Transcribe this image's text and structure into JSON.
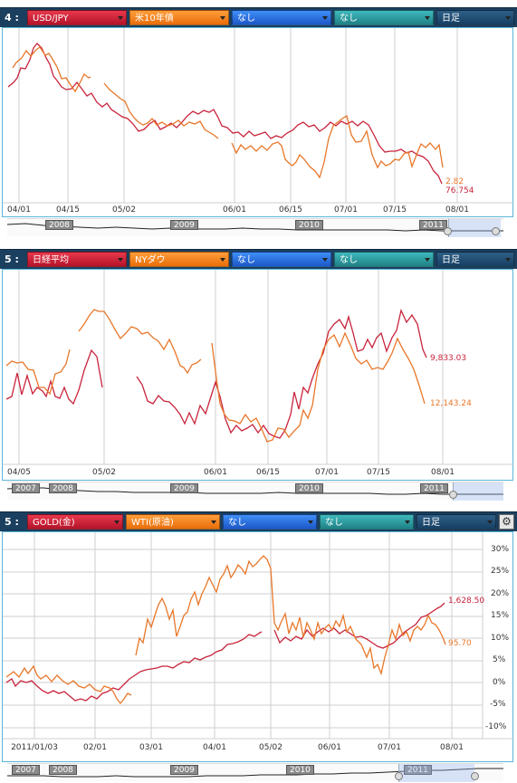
{
  "panels": [
    {
      "index": "4 :",
      "selectors": [
        {
          "label": "USD/JPY",
          "style": "sel-red"
        },
        {
          "label": "米10年債",
          "style": "sel-orange"
        },
        {
          "label": "なし",
          "style": "sel-blue"
        },
        {
          "label": "なし",
          "style": "sel-teal"
        }
      ],
      "period": "日足",
      "has_gear": false,
      "x_ticks": [
        "04/01",
        "04/15",
        "05/02",
        "06/01",
        "06/15",
        "07/01",
        "07/15",
        "08/01"
      ],
      "y_ticks": [],
      "last_values": [
        {
          "label": "2.82",
          "color": "#e8772a"
        },
        {
          "label": "76.754",
          "color": "#c8243c"
        }
      ],
      "nav_years": [
        "2008",
        "2009",
        "2010",
        "2011"
      ]
    },
    {
      "index": "5 :",
      "selectors": [
        {
          "label": "日経平均",
          "style": "sel-red"
        },
        {
          "label": "NYダウ",
          "style": "sel-orange"
        },
        {
          "label": "なし",
          "style": "sel-blue"
        },
        {
          "label": "なし",
          "style": "sel-teal"
        }
      ],
      "period": "日足",
      "has_gear": false,
      "x_ticks": [
        "04/05",
        "05/02",
        "06/01",
        "06/15",
        "07/01",
        "07/15",
        "08/01"
      ],
      "y_ticks": [],
      "last_values": [
        {
          "label": "9,833.03",
          "color": "#c8243c"
        },
        {
          "label": "12,143.24",
          "color": "#e8772a"
        }
      ],
      "nav_years": [
        "2007",
        "2008",
        "2009",
        "2010",
        "2011"
      ]
    },
    {
      "index": "5 :",
      "selectors": [
        {
          "label": "GOLD(金)",
          "style": "sel-red"
        },
        {
          "label": "WTI(原油)",
          "style": "sel-orange"
        },
        {
          "label": "なし",
          "style": "sel-blue"
        },
        {
          "label": "なし",
          "style": "sel-teal"
        }
      ],
      "period": "日足",
      "has_gear": true,
      "x_ticks": [
        "2011/01/03",
        "02/01",
        "03/01",
        "04/01",
        "05/02",
        "06/01",
        "07/01",
        "08/01"
      ],
      "y_ticks": [
        "30%",
        "25%",
        "20%",
        "15%",
        "10%",
        "5%",
        "0%",
        "-5%",
        "-10%"
      ],
      "last_values": [
        {
          "label": "1,628.50",
          "color": "#c8243c"
        },
        {
          "label": "95.70",
          "color": "#e8772a"
        }
      ],
      "nav_years": [
        "2007",
        "2008",
        "2009",
        "2010",
        "2011"
      ]
    }
  ],
  "chart_data": [
    {
      "type": "line",
      "x": [
        "04/01",
        "04/15",
        "05/02",
        "06/01",
        "06/15",
        "07/01",
        "07/15",
        "08/01"
      ],
      "series": [
        {
          "name": "USD/JPY",
          "color": "#c8243c",
          "values": [
            83.5,
            81.8,
            80.7,
            80.9,
            80.3,
            80.4,
            78.8,
            76.754
          ]
        },
        {
          "name": "米10年債",
          "color": "#e8772a",
          "values": [
            3.45,
            3.52,
            3.3,
            3.05,
            2.95,
            3.3,
            3.0,
            2.82
          ]
        }
      ]
    },
    {
      "type": "line",
      "x": [
        "04/05",
        "05/02",
        "06/01",
        "06/15",
        "07/01",
        "07/15",
        "08/01"
      ],
      "series": [
        {
          "name": "日経平均",
          "color": "#c8243c",
          "values": [
            9700,
            9650,
            9690,
            9400,
            9840,
            10050,
            9833.03
          ]
        },
        {
          "name": "NYダウ",
          "color": "#e8772a",
          "values": [
            12400,
            12800,
            12290,
            11950,
            12430,
            12480,
            12143.24
          ]
        }
      ]
    },
    {
      "type": "line",
      "x": [
        "2011/01/03",
        "02/01",
        "03/01",
        "04/01",
        "05/02",
        "06/01",
        "07/01",
        "08/01"
      ],
      "ylim": [
        -10,
        30
      ],
      "series": [
        {
          "name": "GOLD(金)",
          "color": "#c8243c",
          "values": [
            0,
            -3,
            0,
            3,
            9,
            10,
            12,
            17
          ]
        },
        {
          "name": "WTI(原油)",
          "color": "#e8772a",
          "values": [
            0,
            -2,
            12,
            23,
            28,
            10,
            5,
            10
          ]
        }
      ]
    }
  ]
}
